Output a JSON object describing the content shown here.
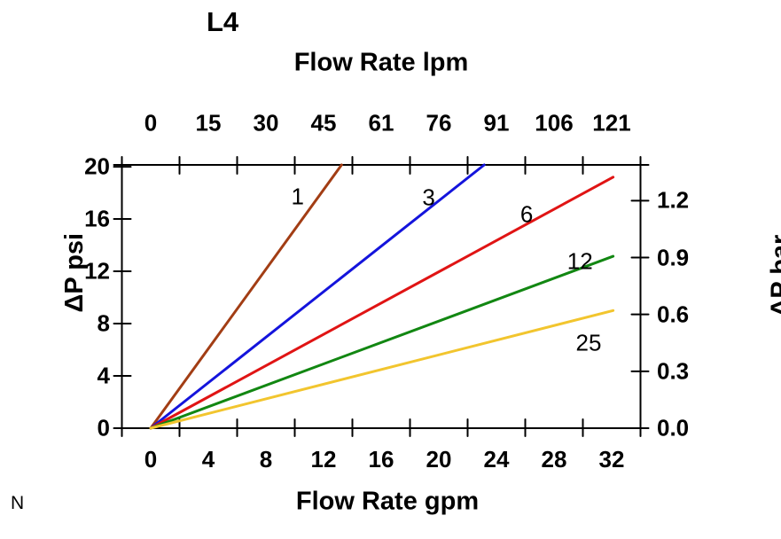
{
  "page": {
    "title": "L4",
    "corner_note": "N"
  },
  "chart_data": {
    "type": "line",
    "title": "L4",
    "grid": false,
    "legend": "inline-curve-labels",
    "top_axis": {
      "label": "Flow Rate lpm",
      "tick_labels": [
        "0",
        "15",
        "30",
        "45",
        "61",
        "76",
        "91",
        "106",
        "121"
      ],
      "label_positions_gpm": [
        0,
        4,
        8,
        12,
        16,
        20,
        24,
        28,
        32
      ]
    },
    "bottom_axis": {
      "label": "Flow Rate gpm",
      "tick_labels": [
        "0",
        "4",
        "8",
        "12",
        "16",
        "20",
        "24",
        "28",
        "32"
      ],
      "label_positions_gpm": [
        0,
        4,
        8,
        12,
        16,
        20,
        24,
        28,
        32
      ],
      "tick_mark_positions_gpm": [
        -2,
        2,
        6,
        10,
        14,
        18,
        22,
        26,
        30,
        34
      ],
      "range_gpm": [
        -2,
        34
      ]
    },
    "left_axis": {
      "label": "ΔP psi",
      "tick_labels": [
        "0",
        "4",
        "8",
        "12",
        "16",
        "20"
      ],
      "tick_values_psi": [
        0,
        4,
        8,
        12,
        16,
        20
      ],
      "range_psi": [
        0,
        20.14
      ]
    },
    "right_axis": {
      "label": "ΔP bar",
      "tick_labels": [
        "0.0",
        "0.3",
        "0.6",
        "0.9",
        "1.2"
      ],
      "tick_values_bar": [
        0.0,
        0.3,
        0.6,
        0.9,
        1.2
      ],
      "psi_per_bar": 14.5038
    },
    "series": [
      {
        "name": "1",
        "color": "#A23D14",
        "points_gpm_psi": [
          [
            0,
            0
          ],
          [
            13.25,
            20.14
          ]
        ],
        "label_at_gpm_psi": [
          10.2,
          17.7
        ]
      },
      {
        "name": "3",
        "color": "#1414DC",
        "points_gpm_psi": [
          [
            0,
            0
          ],
          [
            23.15,
            20.14
          ]
        ],
        "label_at_gpm_psi": [
          19.3,
          17.6
        ]
      },
      {
        "name": "6",
        "color": "#E01414",
        "points_gpm_psi": [
          [
            0,
            0
          ],
          [
            32.1,
            19.2
          ]
        ],
        "label_at_gpm_psi": [
          26.1,
          16.35
        ]
      },
      {
        "name": "12",
        "color": "#128712",
        "points_gpm_psi": [
          [
            0,
            0
          ],
          [
            32.1,
            13.15
          ]
        ],
        "label_at_gpm_psi": [
          29.8,
          12.75
        ]
      },
      {
        "name": "25",
        "color": "#F2C52E",
        "points_gpm_psi": [
          [
            0,
            0
          ],
          [
            32.1,
            9.0
          ]
        ],
        "label_at_gpm_psi": [
          30.4,
          6.5
        ]
      }
    ]
  }
}
